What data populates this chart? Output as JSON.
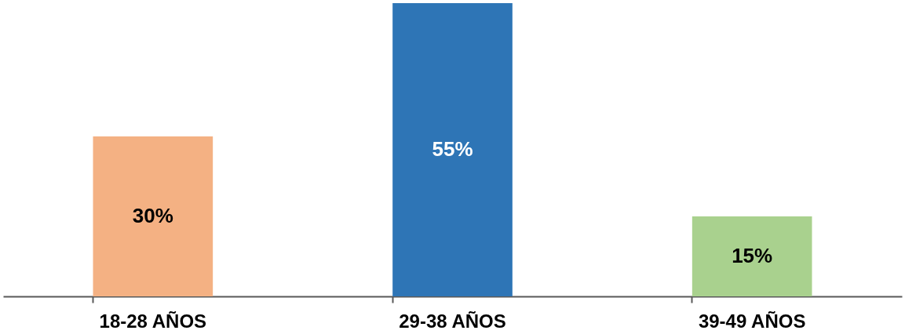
{
  "chart_data": {
    "type": "bar",
    "categories": [
      "18-28 AÑOS",
      "29-38 AÑOS",
      "39-49 AÑOS"
    ],
    "values": [
      30,
      55,
      15
    ],
    "colors": [
      "#f4b183",
      "#2e75b6",
      "#a9d18e"
    ],
    "value_labels": [
      "30%",
      "55%",
      "15%"
    ],
    "ylim": [
      0,
      55
    ]
  }
}
